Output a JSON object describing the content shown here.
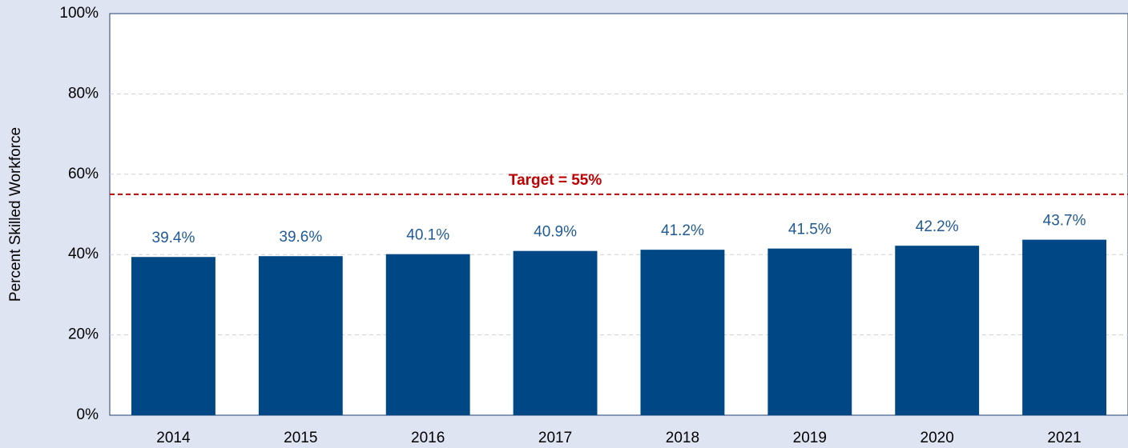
{
  "chart_data": {
    "type": "bar",
    "y_label": "Percent Skilled Workforce",
    "categories": [
      "2014",
      "2015",
      "2016",
      "2017",
      "2018",
      "2019",
      "2020",
      "2021"
    ],
    "values": [
      39.4,
      39.6,
      40.1,
      40.9,
      41.2,
      41.5,
      42.2,
      43.7
    ],
    "value_labels": [
      "39.4%",
      "39.6%",
      "40.1%",
      "40.9%",
      "41.2%",
      "41.5%",
      "42.2%",
      "43.7%"
    ],
    "color": "#004785",
    "ylim": [
      0,
      100
    ],
    "yticks": [
      {
        "value": 0,
        "label": "0%"
      },
      {
        "value": 20,
        "label": "20%"
      },
      {
        "value": 40,
        "label": "40%"
      },
      {
        "value": 60,
        "label": "60%"
      },
      {
        "value": 80,
        "label": "80%"
      },
      {
        "value": 100,
        "label": "100%"
      }
    ],
    "grid": true,
    "target": {
      "value": 55,
      "label": "Target = 55%",
      "color": "#c00000"
    }
  }
}
